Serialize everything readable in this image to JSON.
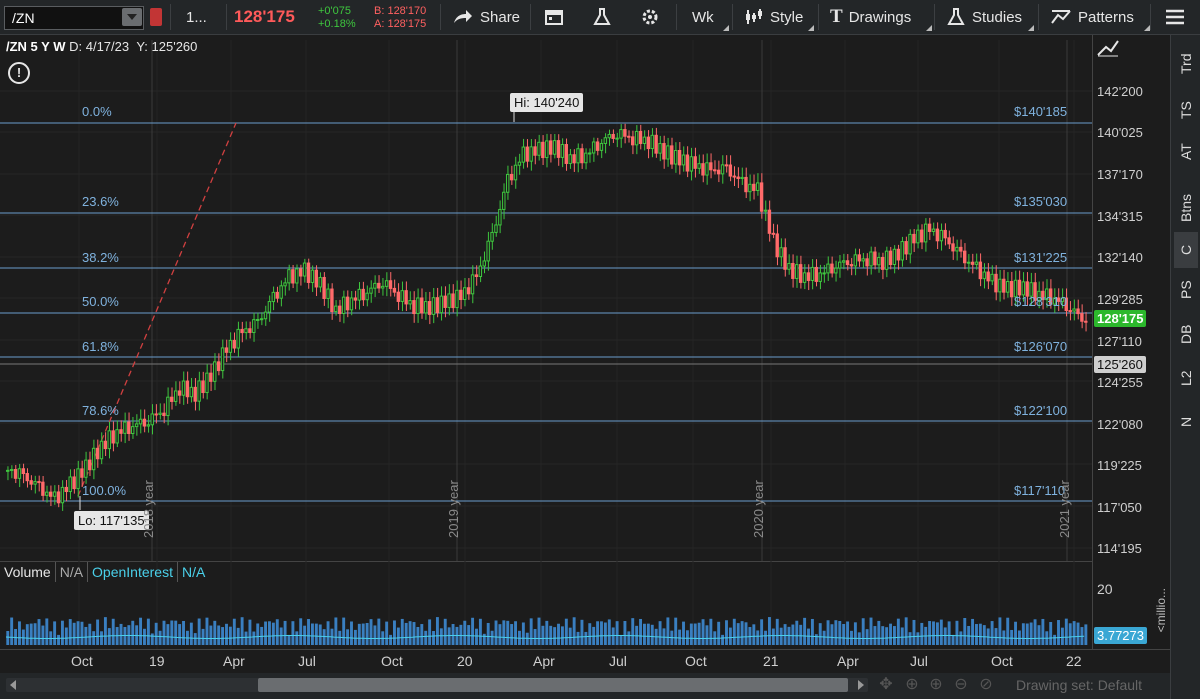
{
  "toolbar": {
    "symbol": "/ZN",
    "period_short": "1...",
    "last_price": "128'175",
    "net_change": "+0'075",
    "pct_change": "+0.18%",
    "bid": "B: 128'170",
    "ask": "A: 128'175",
    "share": "Share",
    "aggregation": "Wk",
    "style": "Style",
    "drawings": "Drawings",
    "studies": "Studies",
    "patterns": "Patterns",
    "colors": {
      "down": "#ff5a5a",
      "up": "#3ec63e",
      "accent": "#7fb2de"
    }
  },
  "chart_header": {
    "title": "/ZN 5 Y W",
    "date": "D: 4/17/23",
    "y": "Y: 125'260"
  },
  "right_panel": {
    "tabs": [
      "Trd",
      "TS",
      "AT",
      "Btns",
      "C",
      "PS",
      "DB",
      "L2",
      "N"
    ],
    "active": "C"
  },
  "price_axis": {
    "labels": [
      "142'200",
      "140'025",
      "137'170",
      "134'315",
      "132'140",
      "129'285",
      "127'110",
      "124'255",
      "122'080",
      "119'225",
      "117'050",
      "114'195"
    ],
    "last_price_tag": "128'175",
    "cursor_tag": "125'260"
  },
  "fibonacci": {
    "levels": [
      {
        "pct": "0.0%",
        "price": "$140'185"
      },
      {
        "pct": "23.6%",
        "price": "$135'030"
      },
      {
        "pct": "38.2%",
        "price": "$131'225"
      },
      {
        "pct": "50.0%",
        "price": "$128'310"
      },
      {
        "pct": "61.8%",
        "price": "$126'070"
      },
      {
        "pct": "78.6%",
        "price": "$122'100"
      },
      {
        "pct": "100.0%",
        "price": "$117'110"
      }
    ]
  },
  "callouts": {
    "hi": "Hi: 140'240",
    "lo": "Lo: 117'135"
  },
  "year_markers": [
    "2018 year",
    "2019 year",
    "2020 year",
    "2021 year"
  ],
  "volume": {
    "label": "Volume",
    "value_na": "N/A",
    "oi_label": "OpenInterest",
    "oi_na": "N/A",
    "axis_top": "20",
    "axis_unit": "<millio...",
    "last": "3.77273"
  },
  "time_axis": [
    "Oct",
    "19",
    "Apr",
    "Jul",
    "Oct",
    "20",
    "Apr",
    "Jul",
    "Oct",
    "21",
    "Apr",
    "Jul",
    "Oct",
    "22"
  ],
  "bottom": {
    "drawing_set": "Drawing set: Default"
  },
  "chart_data": {
    "type": "candlestick",
    "approx_weekly_closes": [
      119.4,
      119.0,
      118.3,
      117.6,
      118.5,
      119.6,
      120.9,
      121.8,
      122.2,
      122.5,
      123.2,
      124.5,
      124.1,
      125.2,
      126.8,
      127.8,
      128.4,
      129.9,
      131.2,
      131.6,
      130.8,
      129.2,
      129.9,
      130.4,
      131.0,
      130.2,
      129.5,
      129.4,
      129.7,
      130.0,
      131.2,
      133.7,
      137.1,
      138.7,
      139.0,
      139.2,
      138.5,
      138.8,
      139.6,
      140.1,
      139.8,
      139.6,
      138.9,
      138.4,
      138.0,
      137.7,
      137.8,
      136.9,
      136.5,
      133.4,
      131.7,
      131.3,
      131.5,
      132.0,
      132.3,
      132.4,
      132.2,
      132.7,
      133.6,
      134.1,
      133.5,
      132.5,
      131.7,
      130.9,
      130.5,
      130.6,
      130.2,
      130.0,
      129.4,
      128.5
    ]
  }
}
